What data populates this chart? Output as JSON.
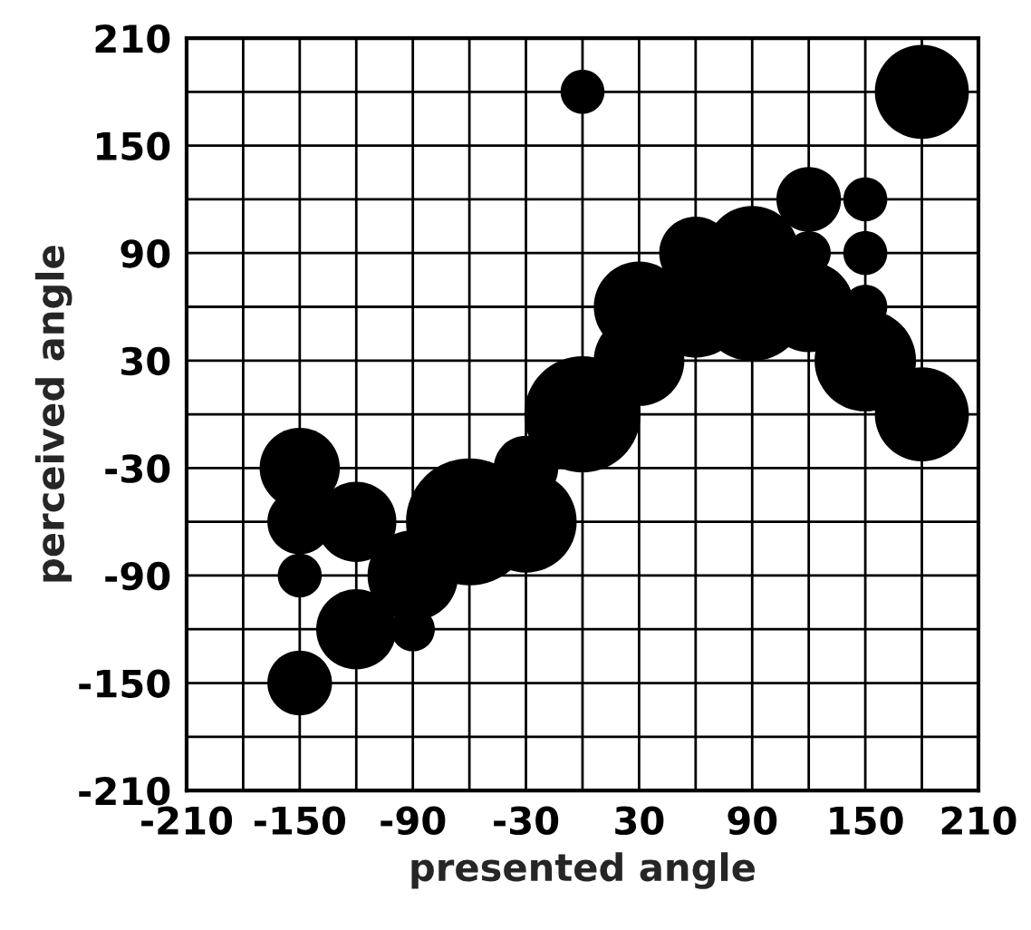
{
  "chart_data": {
    "type": "bubble",
    "xlabel": "presented angle",
    "ylabel": "perceived angle",
    "x": [
      0,
      180,
      120,
      150,
      150,
      120,
      150,
      60,
      90,
      90,
      60,
      30,
      30,
      120,
      150,
      180,
      0,
      -30,
      -30,
      -60,
      -90,
      -90,
      -120,
      -120,
      -150,
      -150,
      -150,
      -150
    ],
    "series": [
      {
        "color": "#000000",
        "values": [
          180,
          180,
          120,
          120,
          90,
          90,
          60,
          90,
          90,
          60,
          60,
          60,
          30,
          60,
          30,
          0,
          0,
          -30,
          -60,
          -60,
          -90,
          -120,
          -60,
          -120,
          -30,
          -60,
          -90,
          -150
        ],
        "sizes": [
          0.12,
          0.55,
          0.26,
          0.12,
          0.12,
          0.12,
          0.12,
          0.33,
          0.55,
          0.73,
          0.64,
          0.51,
          0.51,
          0.51,
          0.64,
          0.55,
          0.84,
          0.26,
          0.64,
          1,
          0.51,
          0.12,
          0.4,
          0.4,
          0.4,
          0.26,
          0.12,
          0.26
        ]
      }
    ],
    "xlim": [
      -210,
      210
    ],
    "ylim": [
      -210,
      210
    ],
    "xticks": [
      -210,
      {
        "value": -180,
        "label": null
      },
      -150,
      {
        "value": -120,
        "label": null
      },
      -90,
      {
        "value": -60,
        "label": null
      },
      -30,
      {
        "value": 0,
        "label": null
      },
      30,
      {
        "value": 60,
        "label": null
      },
      90,
      {
        "value": 120,
        "label": null
      },
      150,
      {
        "value": 180,
        "label": null
      },
      210
    ],
    "yticks": [
      -210,
      {
        "value": -180,
        "label": null
      },
      -150,
      {
        "value": -120,
        "label": null
      },
      -90,
      {
        "value": -60,
        "label": null
      },
      -30,
      {
        "value": 0,
        "label": null
      },
      30,
      {
        "value": 60,
        "label": null
      },
      90,
      {
        "value": 120,
        "label": null
      },
      150,
      {
        "value": 180,
        "label": null
      },
      210
    ],
    "grid": true,
    "marker": "circle"
  }
}
